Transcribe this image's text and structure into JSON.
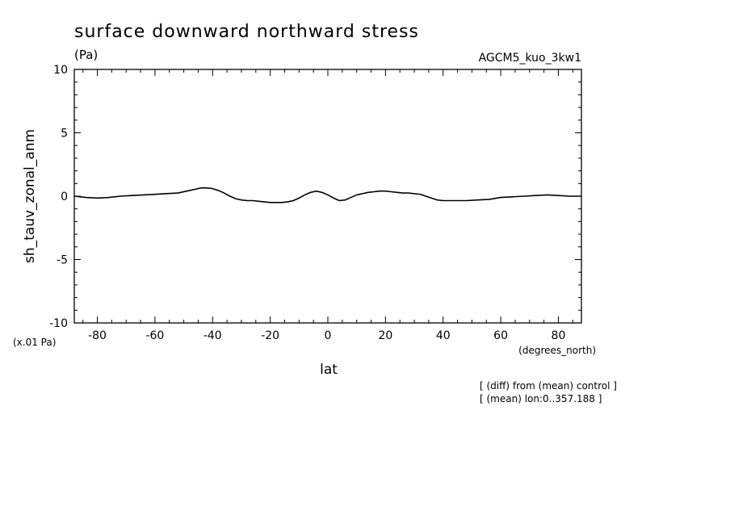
{
  "chart_data": {
    "type": "line",
    "title": "surface downward northward stress",
    "title_units": "(Pa)",
    "run_label": "AGCM5_kuo_3kw1",
    "ylabel": "sh_tauv_zonal_anm",
    "xlabel": "lat",
    "y_scale_label": "(x.01 Pa)",
    "x_units_label": "(degrees_north)",
    "notes": [
      "[ (diff) from (mean) control ]",
      "[ (mean) lon:0..357.188 ]"
    ],
    "xlim": [
      -88,
      88
    ],
    "ylim": [
      -10,
      10
    ],
    "x_ticks": [
      -80,
      -60,
      -40,
      -20,
      0,
      20,
      40,
      60,
      80
    ],
    "x_tick_labels": [
      "-80",
      "-60",
      "-40",
      "-20",
      "0",
      "20",
      "40",
      "60",
      "80"
    ],
    "y_ticks": [
      -10,
      -5,
      0,
      5,
      10
    ],
    "y_tick_labels": [
      "-10",
      "-5",
      "0",
      "5",
      "10"
    ],
    "series": [
      {
        "x": [
          -88,
          -84,
          -80,
          -76,
          -72,
          -68,
          -64,
          -60,
          -56,
          -52,
          -48,
          -46,
          -44,
          -42,
          -40,
          -38,
          -36,
          -34,
          -32,
          -30,
          -28,
          -26,
          -24,
          -22,
          -20,
          -18,
          -16,
          -14,
          -12,
          -10,
          -8,
          -6,
          -4,
          -2,
          0,
          2,
          4,
          6,
          8,
          10,
          12,
          14,
          16,
          18,
          20,
          22,
          24,
          26,
          28,
          30,
          32,
          34,
          36,
          38,
          40,
          44,
          48,
          52,
          56,
          60,
          64,
          68,
          72,
          76,
          80,
          84,
          88
        ],
        "y": [
          0.0,
          -0.1,
          -0.15,
          -0.1,
          0.0,
          0.05,
          0.1,
          0.15,
          0.2,
          0.25,
          0.45,
          0.55,
          0.65,
          0.65,
          0.6,
          0.45,
          0.25,
          0.0,
          -0.2,
          -0.3,
          -0.35,
          -0.35,
          -0.4,
          -0.45,
          -0.5,
          -0.5,
          -0.5,
          -0.45,
          -0.35,
          -0.15,
          0.1,
          0.3,
          0.4,
          0.3,
          0.1,
          -0.15,
          -0.35,
          -0.3,
          -0.1,
          0.1,
          0.2,
          0.3,
          0.35,
          0.4,
          0.4,
          0.35,
          0.3,
          0.25,
          0.25,
          0.2,
          0.15,
          0.0,
          -0.15,
          -0.3,
          -0.35,
          -0.35,
          -0.35,
          -0.3,
          -0.25,
          -0.1,
          -0.05,
          0.0,
          0.05,
          0.1,
          0.05,
          0.0,
          0.0
        ],
        "color": "#000000"
      }
    ]
  }
}
